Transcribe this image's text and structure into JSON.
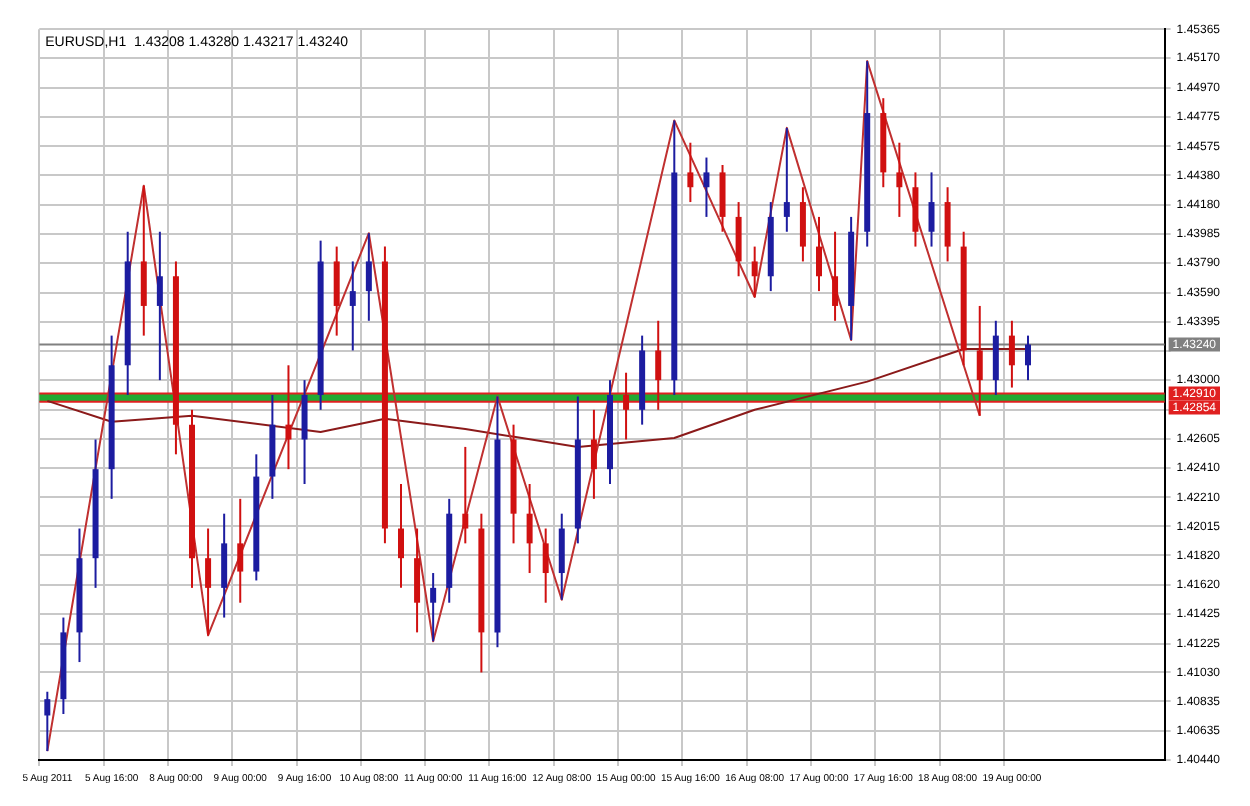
{
  "chart_data": {
    "type": "candlestick",
    "title": "EURUSD,H1  1.43208 1.43280 1.43217 1.43240",
    "categories": [
      "5 Aug 2011",
      null,
      null,
      null,
      "5 Aug 16:00",
      null,
      null,
      null,
      "8 Aug 00:00",
      null,
      null,
      null,
      "9 Aug 00:00",
      null,
      null,
      null,
      "9 Aug 16:00",
      null,
      null,
      null,
      "10 Aug 08:00",
      null,
      null,
      null,
      "11 Aug 00:00",
      null,
      null,
      null,
      "11 Aug 16:00",
      null,
      null,
      null,
      "12 Aug 08:00",
      null,
      null,
      null,
      "15 Aug 00:00",
      null,
      null,
      null,
      "15 Aug 16:00",
      null,
      null,
      null,
      "16 Aug 08:00",
      null,
      null,
      null,
      "17 Aug 00:00",
      null,
      null,
      null,
      "17 Aug 16:00",
      null,
      null,
      null,
      "18 Aug 08:00",
      null,
      null,
      null,
      "19 Aug 00:00",
      null,
      null,
      null,
      null,
      null,
      null,
      null,
      null,
      null
    ],
    "ohlc": [
      [
        1.4074,
        1.409,
        1.405,
        1.4085
      ],
      [
        1.4085,
        1.414,
        1.4075,
        1.413
      ],
      [
        1.413,
        1.42,
        1.411,
        1.418
      ],
      [
        1.418,
        1.426,
        1.416,
        1.424
      ],
      [
        1.424,
        1.433,
        1.422,
        1.431
      ],
      [
        1.431,
        1.44,
        1.429,
        1.438
      ],
      [
        1.438,
        1.4431,
        1.433,
        1.435
      ],
      [
        1.435,
        1.44,
        1.43,
        1.437
      ],
      [
        1.437,
        1.438,
        1.425,
        1.427
      ],
      [
        1.427,
        1.428,
        1.416,
        1.418
      ],
      [
        1.418,
        1.42,
        1.4128,
        1.416
      ],
      [
        1.416,
        1.421,
        1.414,
        1.419
      ],
      [
        1.419,
        1.422,
        1.415,
        1.4171
      ],
      [
        1.4171,
        1.425,
        1.4165,
        1.4235
      ],
      [
        1.4235,
        1.429,
        1.422,
        1.427
      ],
      [
        1.427,
        1.431,
        1.424,
        1.426
      ],
      [
        1.426,
        1.43,
        1.423,
        1.429
      ],
      [
        1.429,
        1.4394,
        1.428,
        1.438
      ],
      [
        1.438,
        1.439,
        1.433,
        1.435
      ],
      [
        1.435,
        1.438,
        1.432,
        1.436
      ],
      [
        1.436,
        1.4399,
        1.434,
        1.438
      ],
      [
        1.438,
        1.439,
        1.419,
        1.42
      ],
      [
        1.42,
        1.423,
        1.416,
        1.418
      ],
      [
        1.418,
        1.42,
        1.413,
        1.415
      ],
      [
        1.415,
        1.417,
        1.4124,
        1.416
      ],
      [
        1.416,
        1.422,
        1.415,
        1.421
      ],
      [
        1.421,
        1.4255,
        1.419,
        1.42
      ],
      [
        1.42,
        1.421,
        1.4103,
        1.413
      ],
      [
        1.413,
        1.4289,
        1.412,
        1.426
      ],
      [
        1.426,
        1.427,
        1.419,
        1.421
      ],
      [
        1.421,
        1.423,
        1.417,
        1.419
      ],
      [
        1.419,
        1.42,
        1.415,
        1.417
      ],
      [
        1.417,
        1.421,
        1.4152,
        1.42
      ],
      [
        1.42,
        1.4289,
        1.419,
        1.426
      ],
      [
        1.426,
        1.428,
        1.422,
        1.424
      ],
      [
        1.424,
        1.43,
        1.423,
        1.429
      ],
      [
        1.429,
        1.4305,
        1.426,
        1.428
      ],
      [
        1.428,
        1.433,
        1.427,
        1.432
      ],
      [
        1.432,
        1.434,
        1.428,
        1.43
      ],
      [
        1.43,
        1.4475,
        1.429,
        1.444
      ],
      [
        1.444,
        1.446,
        1.442,
        1.443
      ],
      [
        1.443,
        1.445,
        1.441,
        1.444
      ],
      [
        1.444,
        1.4445,
        1.44,
        1.441
      ],
      [
        1.441,
        1.442,
        1.437,
        1.438
      ],
      [
        1.438,
        1.439,
        1.4356,
        1.437
      ],
      [
        1.437,
        1.442,
        1.436,
        1.441
      ],
      [
        1.441,
        1.447,
        1.44,
        1.442
      ],
      [
        1.442,
        1.443,
        1.438,
        1.439
      ],
      [
        1.439,
        1.441,
        1.436,
        1.437
      ],
      [
        1.437,
        1.44,
        1.434,
        1.435
      ],
      [
        1.435,
        1.441,
        1.4327,
        1.44
      ],
      [
        1.44,
        1.4515,
        1.439,
        1.448
      ],
      [
        1.448,
        1.449,
        1.443,
        1.444
      ],
      [
        1.444,
        1.446,
        1.441,
        1.443
      ],
      [
        1.443,
        1.444,
        1.439,
        1.44
      ],
      [
        1.44,
        1.444,
        1.439,
        1.442
      ],
      [
        1.442,
        1.443,
        1.438,
        1.439
      ],
      [
        1.439,
        1.44,
        1.431,
        1.432
      ],
      [
        1.432,
        1.435,
        1.4276,
        1.43
      ],
      [
        1.43,
        1.434,
        1.429,
        1.433
      ],
      [
        1.433,
        1.434,
        1.4295,
        1.431
      ],
      [
        1.431,
        1.433,
        1.43,
        1.4324
      ],
      null,
      null,
      null,
      null,
      null,
      null,
      null,
      null
    ],
    "colors": [
      "#1c1ca0",
      "#1c1ca0",
      "#1c1ca0",
      "#1c1ca0",
      "#1c1ca0",
      "#1c1ca0",
      "#d01010",
      "#1c1ca0",
      "#d01010",
      "#d01010",
      "#d01010",
      "#1c1ca0",
      "#d01010",
      "#1c1ca0",
      "#1c1ca0",
      "#d01010",
      "#1c1ca0",
      "#1c1ca0",
      "#d01010",
      "#1c1ca0",
      "#1c1ca0",
      "#d01010",
      "#d01010",
      "#d01010",
      "#1c1ca0",
      "#1c1ca0",
      "#d01010",
      "#d01010",
      "#1c1ca0",
      "#d01010",
      "#d01010",
      "#d01010",
      "#1c1ca0",
      "#1c1ca0",
      "#d01010",
      "#1c1ca0",
      "#d01010",
      "#1c1ca0",
      "#d01010",
      "#1c1ca0",
      "#d01010",
      "#1c1ca0",
      "#d01010",
      "#d01010",
      "#d01010",
      "#1c1ca0",
      "#1c1ca0",
      "#d01010",
      "#d01010",
      "#d01010",
      "#1c1ca0",
      "#1c1ca0",
      "#d01010",
      "#d01010",
      "#d01010",
      "#1c1ca0",
      "#d01010",
      "#d01010",
      "#d01010",
      "#1c1ca0",
      "#d01010",
      "#1c1ca0",
      null,
      null,
      null,
      null,
      null,
      null,
      null,
      null
    ],
    "series": [
      {
        "type": "line",
        "color": "#c03030",
        "values": [
          1.405,
          null,
          null,
          null,
          null,
          null,
          1.4431,
          null,
          null,
          null,
          1.4128,
          null,
          null,
          null,
          null,
          null,
          null,
          null,
          null,
          null,
          1.4399,
          null,
          null,
          null,
          1.4124,
          null,
          null,
          null,
          1.4289,
          null,
          null,
          null,
          1.4152,
          null,
          null,
          null,
          null,
          null,
          null,
          1.4475,
          null,
          null,
          null,
          null,
          1.4356,
          null,
          1.447,
          null,
          null,
          null,
          1.4327,
          1.4515,
          null,
          null,
          null,
          null,
          null,
          null,
          1.4276,
          null,
          null,
          null,
          null,
          null,
          null,
          null,
          null,
          null,
          null,
          null
        ]
      },
      {
        "type": "line",
        "color": "#8b1a1a",
        "values": [
          1.4286,
          null,
          null,
          null,
          1.4272,
          null,
          null,
          null,
          null,
          1.4276,
          null,
          null,
          null,
          null,
          null,
          null,
          null,
          1.4265,
          null,
          null,
          null,
          1.4274,
          null,
          null,
          null,
          null,
          1.4267,
          null,
          null,
          null,
          null,
          null,
          null,
          1.4255,
          null,
          null,
          null,
          null,
          null,
          1.4261,
          null,
          null,
          null,
          null,
          1.428,
          null,
          null,
          null,
          null,
          null,
          null,
          1.4299,
          null,
          null,
          null,
          null,
          null,
          1.4321,
          null,
          null,
          null,
          1.4321,
          null,
          null,
          null,
          null,
          null,
          null,
          null,
          null
        ]
      }
    ],
    "ylim": [
      1.4044,
      1.45365
    ],
    "yticks": [
      {
        "value": 1.4044,
        "label": "1.40440"
      },
      1.40635,
      1.40835,
      {
        "value": 1.4103,
        "label": "1.41030"
      },
      1.41225,
      1.41425,
      {
        "value": 1.4162,
        "label": "1.41620"
      },
      {
        "value": 1.4182,
        "label": "1.41820"
      },
      1.42015,
      {
        "value": 1.4221,
        "label": "1.42210"
      },
      {
        "value": 1.4241,
        "label": "1.42410"
      },
      1.42605,
      {
        "value": 1.428,
        "label": null
      },
      {
        "value": 1.43,
        "label": "1.43000"
      },
      {
        "value": 1.43195,
        "label": null
      },
      1.43395,
      {
        "value": 1.4359,
        "label": "1.43590"
      },
      {
        "value": 1.4379,
        "label": "1.43790"
      },
      1.43985,
      {
        "value": 1.4418,
        "label": "1.44180"
      },
      {
        "value": 1.4438,
        "label": "1.44380"
      },
      1.44575,
      1.44775,
      {
        "value": 1.4497,
        "label": "1.44970"
      },
      {
        "value": 1.4517,
        "label": "1.45170"
      },
      1.45365
    ],
    "ref_lines": [
      {
        "axis": "y",
        "value": 1.4324,
        "label": "1.43240",
        "color": "#808080"
      },
      {
        "axis": "y",
        "value": 1.4291,
        "label": "1.42910",
        "color": "#e02020"
      },
      {
        "axis": "y",
        "value": 1.42854,
        "label": "1.42854",
        "color": "#e02020"
      }
    ],
    "bands": [
      {
        "axis": "y",
        "from": 1.42854,
        "to": 1.4291,
        "color": "#22aa33"
      }
    ],
    "grid": true
  }
}
